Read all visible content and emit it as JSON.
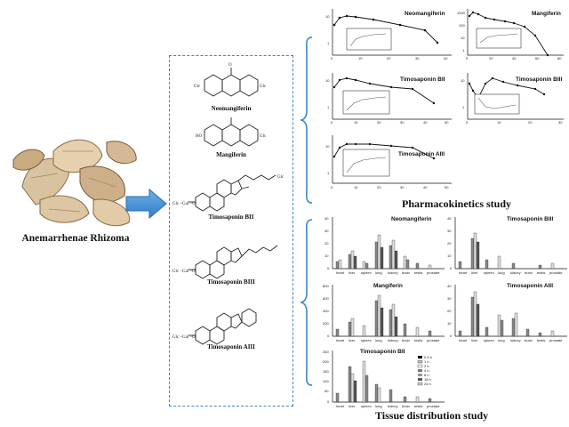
{
  "herb": {
    "name": "Anemarrhenae Rhizoma"
  },
  "compounds": [
    {
      "name": "Neomangiferin"
    },
    {
      "name": "Mangiferin"
    },
    {
      "name": "Timosaponin BII"
    },
    {
      "name": "Timosaponin BIII"
    },
    {
      "name": "Timosaponin AIII"
    }
  ],
  "structure_labels": {
    "glc_left": "Glc",
    "glc_right": "Glc",
    "glc_side": "Glc",
    "glc_gal": "Glc –Gal –O",
    "ho": "HO",
    "oh": "OH",
    "o": "O"
  },
  "pk": {
    "section_title": "Pharmacokinetics study",
    "ylabel": "Concentration (ng/mL)",
    "xlabel": "Time (h",
    "inset_xlabel": "Time (h",
    "panels": [
      {
        "title": "Neomangiferin",
        "ticks_y": [
          "10",
          "1"
        ],
        "ticks_x": [
          "0",
          "10",
          "20",
          "30",
          "40"
        ]
      },
      {
        "title": "Mangiferin",
        "ticks_y": [
          "1000",
          "100",
          "10",
          "1"
        ],
        "ticks_x": [
          "0",
          "10",
          "20",
          "30",
          "40",
          "50",
          "60",
          "70",
          "80"
        ]
      },
      {
        "title": "Timosaponin BII",
        "ticks_y": [
          "10",
          "1"
        ],
        "ticks_x": [
          "0",
          "10",
          "20",
          "30",
          "40",
          "50"
        ]
      },
      {
        "title": "Timosaponin BIII",
        "ticks_y": [
          "10",
          "1"
        ],
        "ticks_x": [
          "0",
          "5",
          "10",
          "15",
          "20",
          "25",
          "30"
        ]
      },
      {
        "title": "Timosaponin AIII",
        "ticks_y": [
          "10",
          "1"
        ],
        "ticks_x": [
          "0",
          "10",
          "20",
          "30",
          "40",
          "50"
        ]
      }
    ]
  },
  "td": {
    "section_title": "Tissue distribution study",
    "ylabel": "Concentration (ng/mL)",
    "tissues": [
      "heart",
      "liver",
      "spleen",
      "lung",
      "kidney",
      "brain",
      "testis",
      "prostate"
    ],
    "legend": [
      "0.5 h",
      "1 h",
      "2 h",
      "4 h",
      "8 h",
      "16 h",
      "24 h"
    ],
    "panels": [
      {
        "title": "Neomangiferin",
        "ticks_y": [
          "40",
          "30",
          "20",
          "10",
          "0"
        ]
      },
      {
        "title": "Timosaponin BIII",
        "ticks_y": [
          "40",
          "30",
          "20",
          "10",
          "0"
        ]
      },
      {
        "title": "Mangiferin",
        "ticks_y": [
          "800",
          "600",
          "400",
          "200",
          "0"
        ]
      },
      {
        "title": "Timosaponin AIII",
        "ticks_y": [
          "40",
          "30",
          "20",
          "10",
          "0"
        ]
      },
      {
        "title": "Timosaponin BII",
        "ticks_y": [
          "250",
          "200",
          "150",
          "100",
          "50",
          "0"
        ]
      }
    ]
  }
}
